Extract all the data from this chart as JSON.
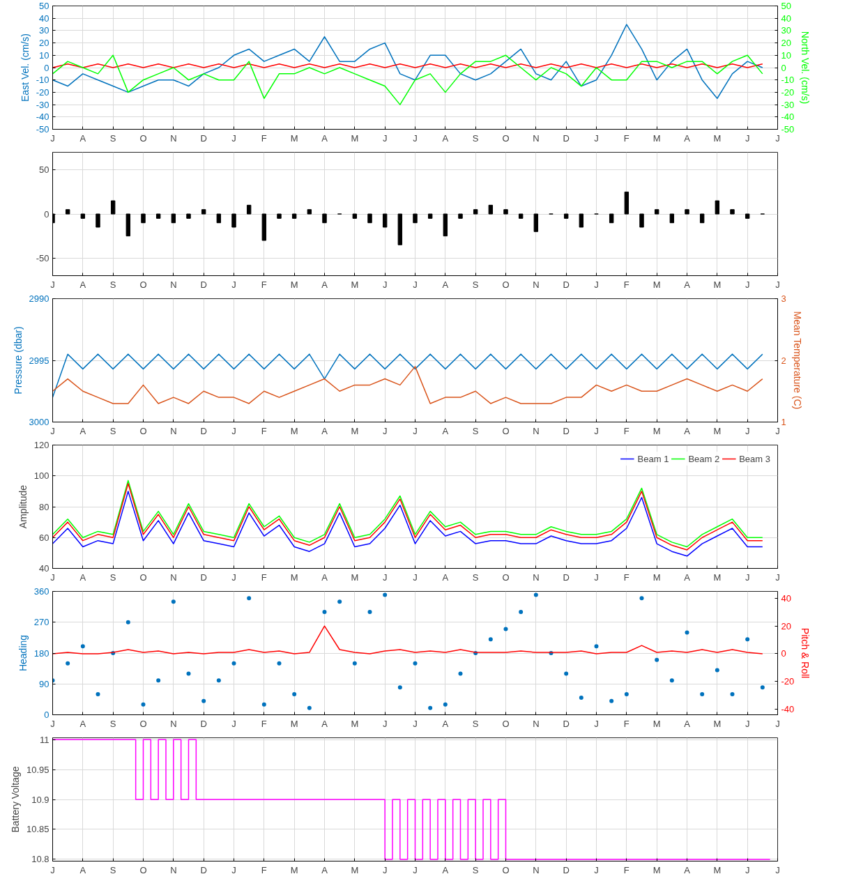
{
  "chart_data": [
    {
      "type": "line",
      "ylabel": "East Vel. (cm/s)",
      "y2label": "North Vel. (cm/s)",
      "ylim": [
        -50,
        50
      ],
      "yticks": [
        -50,
        -40,
        -30,
        -20,
        -10,
        0,
        10,
        20,
        30,
        40,
        50
      ],
      "y2lim": [
        -50,
        50
      ],
      "y2ticks": [
        -50,
        -40,
        -30,
        -20,
        -10,
        0,
        10,
        20,
        30,
        40,
        50
      ],
      "grid": true,
      "categories": [
        "J",
        null,
        "A",
        null,
        "S",
        null,
        "O",
        null,
        "N",
        null,
        "D",
        null,
        "J",
        null,
        "F",
        null,
        "M",
        null,
        "A",
        null,
        "M",
        null,
        "J",
        null,
        "J",
        null,
        "A",
        null,
        "S",
        null,
        "O",
        null,
        "N",
        null,
        "D",
        null,
        "J",
        null,
        "F",
        null,
        "M",
        null,
        "A",
        null,
        "M",
        null,
        "J",
        null,
        "J"
      ],
      "series": [
        {
          "color": "#0072bd",
          "values": [
            -10,
            -15,
            -5,
            -10,
            -15,
            -20,
            -15,
            -10,
            -10,
            -15,
            -5,
            0,
            10,
            15,
            5,
            10,
            15,
            5,
            25,
            5,
            5,
            15,
            20,
            -5,
            -10,
            10,
            10,
            -5,
            -10,
            -5,
            5,
            15,
            -5,
            -10,
            5,
            -15,
            -10,
            10,
            35,
            15,
            -10,
            5,
            15,
            -10,
            -25,
            -5,
            5,
            0,
            null
          ]
        },
        {
          "color": "#ff0000",
          "values": [
            0,
            3,
            0,
            3,
            0,
            3,
            0,
            3,
            0,
            3,
            0,
            3,
            0,
            3,
            0,
            3,
            0,
            3,
            0,
            3,
            0,
            3,
            0,
            3,
            0,
            3,
            0,
            3,
            0,
            3,
            0,
            3,
            0,
            3,
            0,
            3,
            0,
            3,
            0,
            3,
            0,
            3,
            0,
            3,
            0,
            3,
            0,
            3,
            null
          ]
        },
        {
          "color": "#00ff00",
          "axis": "y2",
          "values": [
            -5,
            5,
            0,
            -5,
            10,
            -20,
            -10,
            -5,
            0,
            -10,
            -5,
            -10,
            -10,
            5,
            -25,
            -5,
            -5,
            0,
            -5,
            0,
            -5,
            -10,
            -15,
            -30,
            -10,
            -5,
            -20,
            -5,
            5,
            5,
            10,
            0,
            -10,
            0,
            -5,
            -15,
            0,
            -10,
            -10,
            5,
            5,
            0,
            5,
            5,
            -5,
            5,
            10,
            -5,
            null
          ]
        }
      ]
    },
    {
      "type": "bar",
      "ylim": [
        -70,
        70
      ],
      "yticks": [
        -50,
        0,
        50
      ],
      "grid": true,
      "categories": [
        "J",
        null,
        "A",
        null,
        "S",
        null,
        "O",
        null,
        "N",
        null,
        "D",
        null,
        "J",
        null,
        "F",
        null,
        "M",
        null,
        "A",
        null,
        "M",
        null,
        "J",
        null,
        "J",
        null,
        "A",
        null,
        "S",
        null,
        "O",
        null,
        "N",
        null,
        "D",
        null,
        "J",
        null,
        "F",
        null,
        "M",
        null,
        "A",
        null,
        "M",
        null,
        "J",
        null,
        "J"
      ],
      "series": [
        {
          "color": "#000000",
          "values": [
            -10,
            5,
            -5,
            -15,
            15,
            -25,
            -10,
            -5,
            -10,
            -5,
            5,
            -10,
            -15,
            10,
            -30,
            -5,
            -5,
            5,
            -10,
            0,
            -5,
            -10,
            -15,
            -35,
            -10,
            -5,
            -25,
            -5,
            5,
            10,
            5,
            -5,
            -20,
            0,
            -5,
            -15,
            0,
            -10,
            25,
            -15,
            5,
            -10,
            5,
            -10,
            15,
            5,
            -5,
            0,
            null
          ]
        }
      ]
    },
    {
      "type": "line",
      "ylabel": "Pressure (dbar)",
      "y2label": "Mean Temperature (C)",
      "ylim": [
        3000,
        2990
      ],
      "yticks": [
        2990,
        2995,
        3000
      ],
      "y2lim": [
        1,
        3
      ],
      "y2ticks": [
        1,
        2,
        3
      ],
      "grid": true,
      "categories": [
        "J",
        null,
        "A",
        null,
        "S",
        null,
        "O",
        null,
        "N",
        null,
        "D",
        null,
        "J",
        null,
        "F",
        null,
        "M",
        null,
        "A",
        null,
        "M",
        null,
        "J",
        null,
        "J",
        null,
        "A",
        null,
        "S",
        null,
        "O",
        null,
        "N",
        null,
        "D",
        null,
        "J",
        null,
        "F",
        null,
        "M",
        null,
        "A",
        null,
        "M",
        null,
        "J",
        null,
        "J"
      ],
      "series": [
        {
          "color": "#0072bd",
          "values": [
            2998,
            2994.5,
            2995.7,
            2994.5,
            2995.7,
            2994.5,
            2995.7,
            2994.5,
            2995.7,
            2994.5,
            2995.7,
            2994.5,
            2995.7,
            2994.5,
            2995.7,
            2994.5,
            2995.7,
            2994.5,
            2996.5,
            2994.5,
            2995.7,
            2994.5,
            2995.7,
            2994.5,
            2995.7,
            2994.5,
            2995.7,
            2994.5,
            2995.7,
            2994.5,
            2995.7,
            2994.5,
            2995.7,
            2994.5,
            2995.7,
            2994.5,
            2995.7,
            2994.5,
            2995.7,
            2994.5,
            2995.7,
            2994.5,
            2995.7,
            2994.5,
            2995.7,
            2994.5,
            2995.7,
            2994.5,
            null
          ]
        },
        {
          "color": "#d95319",
          "axis": "y2",
          "values": [
            1.5,
            1.7,
            1.5,
            1.4,
            1.3,
            1.3,
            1.6,
            1.3,
            1.4,
            1.3,
            1.5,
            1.4,
            1.4,
            1.3,
            1.5,
            1.4,
            1.5,
            1.6,
            1.7,
            1.5,
            1.6,
            1.6,
            1.7,
            1.6,
            1.9,
            1.3,
            1.4,
            1.4,
            1.5,
            1.3,
            1.4,
            1.3,
            1.3,
            1.3,
            1.4,
            1.4,
            1.6,
            1.5,
            1.6,
            1.5,
            1.5,
            1.6,
            1.7,
            1.6,
            1.5,
            1.6,
            1.5,
            1.7,
            null
          ]
        }
      ]
    },
    {
      "type": "line",
      "ylabel": "Amplitude",
      "ylim": [
        40,
        120
      ],
      "yticks": [
        40,
        60,
        80,
        100,
        120
      ],
      "grid": true,
      "legend": "top right",
      "categories": [
        "J",
        null,
        "A",
        null,
        "S",
        null,
        "O",
        null,
        "N",
        null,
        "D",
        null,
        "J",
        null,
        "F",
        null,
        "M",
        null,
        "A",
        null,
        "M",
        null,
        "J",
        null,
        "J",
        null,
        "A",
        null,
        "S",
        null,
        "O",
        null,
        "N",
        null,
        "D",
        null,
        "J",
        null,
        "F",
        null,
        "M",
        null,
        "A",
        null,
        "M",
        null,
        "J",
        null,
        "J"
      ],
      "series": [
        {
          "name": "Beam 1",
          "color": "#0000ff",
          "values": [
            56,
            66,
            54,
            58,
            56,
            90,
            58,
            71,
            56,
            76,
            58,
            56,
            54,
            76,
            61,
            68,
            54,
            51,
            56,
            76,
            54,
            56,
            66,
            81,
            56,
            71,
            61,
            64,
            56,
            58,
            58,
            56,
            56,
            61,
            58,
            56,
            56,
            58,
            66,
            86,
            56,
            51,
            48,
            56,
            61,
            66,
            54,
            54,
            null
          ]
        },
        {
          "name": "Beam 2",
          "color": "#00ff00",
          "values": [
            62,
            72,
            60,
            64,
            62,
            97,
            64,
            77,
            62,
            82,
            64,
            62,
            60,
            82,
            67,
            74,
            60,
            57,
            62,
            82,
            60,
            62,
            72,
            87,
            62,
            77,
            67,
            70,
            62,
            64,
            64,
            62,
            62,
            67,
            64,
            62,
            62,
            64,
            72,
            92,
            62,
            57,
            54,
            62,
            67,
            72,
            60,
            60,
            null
          ]
        },
        {
          "name": "Beam 3",
          "color": "#ff0000",
          "values": [
            60,
            70,
            58,
            62,
            60,
            95,
            62,
            75,
            60,
            80,
            62,
            60,
            58,
            80,
            65,
            72,
            58,
            55,
            60,
            80,
            58,
            60,
            70,
            85,
            60,
            75,
            65,
            68,
            60,
            62,
            62,
            60,
            60,
            65,
            62,
            60,
            60,
            62,
            70,
            90,
            60,
            55,
            52,
            60,
            65,
            70,
            58,
            58,
            null
          ]
        }
      ]
    },
    {
      "type": "scatter",
      "ylabel": "Heading",
      "y2label": "Pitch & Roll",
      "ylim": [
        0,
        360
      ],
      "yticks": [
        0,
        90,
        180,
        270,
        360
      ],
      "y2lim": [
        -44,
        45
      ],
      "y2ticks": [
        -40,
        -20,
        0,
        20,
        40
      ],
      "grid": true,
      "categories": [
        "J",
        null,
        "A",
        null,
        "S",
        null,
        "O",
        null,
        "N",
        null,
        "D",
        null,
        "J",
        null,
        "F",
        null,
        "M",
        null,
        "A",
        null,
        "M",
        null,
        "J",
        null,
        "J",
        null,
        "A",
        null,
        "S",
        null,
        "O",
        null,
        "N",
        null,
        "D",
        null,
        "J",
        null,
        "F",
        null,
        "M",
        null,
        "A",
        null,
        "M",
        null,
        "J",
        null,
        "J"
      ],
      "series": [
        {
          "color": "#0072bd",
          "marker": "circle",
          "values": [
            100,
            150,
            200,
            60,
            180,
            270,
            30,
            100,
            330,
            120,
            40,
            100,
            150,
            340,
            30,
            150,
            60,
            20,
            300,
            330,
            150,
            300,
            350,
            80,
            150,
            20,
            30,
            120,
            180,
            220,
            250,
            300,
            350,
            180,
            120,
            50,
            200,
            40,
            60,
            340,
            160,
            100,
            240,
            60,
            130,
            60,
            220,
            80,
            null
          ]
        },
        {
          "color": "#ff0000",
          "type": "line",
          "axis": "y2",
          "values": [
            0,
            1,
            0,
            0,
            1,
            3,
            1,
            2,
            0,
            1,
            0,
            1,
            1,
            3,
            1,
            2,
            0,
            1,
            20,
            3,
            1,
            0,
            2,
            3,
            1,
            2,
            1,
            3,
            1,
            1,
            1,
            2,
            1,
            1,
            1,
            2,
            0,
            1,
            1,
            6,
            1,
            2,
            1,
            3,
            1,
            3,
            1,
            0,
            null
          ]
        }
      ]
    },
    {
      "type": "step",
      "ylabel": "Battery Voltage",
      "ylim": [
        10.797,
        11.003
      ],
      "yticks": [
        10.8,
        10.85,
        10.9,
        10.95,
        11
      ],
      "grid": true,
      "categories": [
        "J",
        null,
        null,
        null,
        "A",
        null,
        null,
        null,
        "S",
        null,
        null,
        null,
        "O",
        null,
        null,
        null,
        "N",
        null,
        null,
        null,
        "D",
        null,
        null,
        null,
        "J",
        null,
        null,
        null,
        "F",
        null,
        null,
        null,
        "M",
        null,
        null,
        null,
        "A",
        null,
        null,
        null,
        "M",
        null,
        null,
        null,
        "J",
        null,
        null,
        null,
        "J",
        null,
        null,
        null,
        "A",
        null,
        null,
        null,
        "S",
        null,
        null,
        null,
        "O",
        null,
        null,
        null,
        "N",
        null,
        null,
        null,
        "D",
        null,
        null,
        null,
        "J",
        null,
        null,
        null,
        "F",
        null,
        null,
        null,
        "M",
        null,
        null,
        null,
        "A",
        null,
        null,
        null,
        "M",
        null,
        null,
        null,
        "J",
        null,
        null,
        null,
        "J"
      ],
      "series": [
        {
          "color": "#ff00ff",
          "values": [
            11,
            11,
            11,
            11,
            11,
            11,
            11,
            11,
            11,
            11,
            11,
            10.9,
            11,
            10.9,
            11,
            10.9,
            11,
            10.9,
            11,
            10.9,
            10.9,
            10.9,
            10.9,
            10.9,
            10.9,
            10.9,
            10.9,
            10.9,
            10.9,
            10.9,
            10.9,
            10.9,
            10.9,
            10.9,
            10.9,
            10.9,
            10.9,
            10.9,
            10.9,
            10.9,
            10.9,
            10.9,
            10.9,
            10.9,
            10.8,
            10.9,
            10.8,
            10.9,
            10.8,
            10.9,
            10.8,
            10.9,
            10.8,
            10.9,
            10.8,
            10.9,
            10.8,
            10.9,
            10.8,
            10.9,
            10.8,
            10.8,
            10.8,
            10.8,
            10.8,
            10.8,
            10.8,
            10.8,
            10.8,
            10.8,
            10.8,
            10.8,
            10.8,
            10.8,
            10.8,
            10.8,
            10.8,
            10.8,
            10.8,
            10.8,
            10.8,
            10.8,
            10.8,
            10.8,
            10.8,
            10.8,
            10.8,
            10.8,
            10.8,
            10.8,
            10.8,
            10.8,
            10.8,
            10.8,
            10.8,
            10.8,
            null
          ]
        }
      ]
    }
  ]
}
